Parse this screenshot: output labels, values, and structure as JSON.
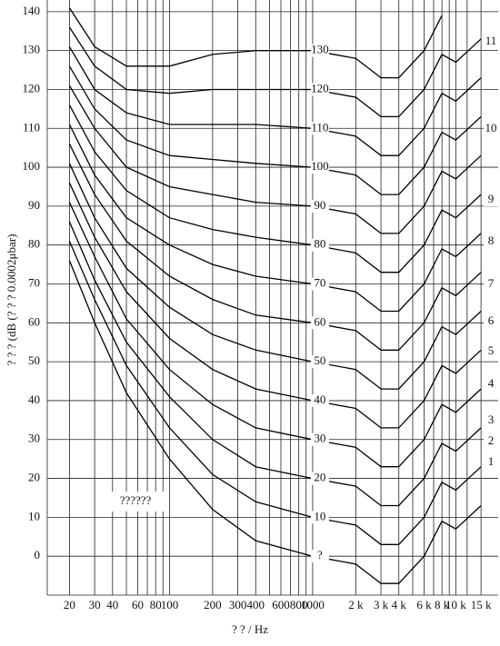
{
  "chart_data": {
    "type": "line",
    "x_label": "? ? / Hz",
    "y_label": "? ? ? (dB (? ? ? 0.0002μbar)",
    "box_label": "??????",
    "log_x": true,
    "grid": true,
    "color": "#000000",
    "xlim": [
      14,
      19770
    ],
    "ylim": [
      -10,
      143
    ],
    "xticks": [
      20,
      30,
      40,
      60,
      80,
      100,
      200,
      300,
      400,
      600,
      800,
      1000,
      {
        "value": 2000,
        "label": "2 k"
      },
      {
        "value": 3000,
        "label": "3 k"
      },
      {
        "value": 4000,
        "label": "4 k"
      },
      {
        "value": 6000,
        "label": "6 k"
      },
      {
        "value": 8000,
        "label": "8 k"
      },
      {
        "value": 10000,
        "label": "10 k"
      },
      {
        "value": 15000,
        "label": "15 k"
      }
    ],
    "x_minor_ticks": [
      50,
      70,
      90,
      500,
      700,
      900,
      5000,
      7000,
      9000,
      12000
    ],
    "yticks": [
      0,
      10,
      20,
      30,
      40,
      50,
      60,
      70,
      80,
      90,
      100,
      110,
      120,
      130,
      140
    ],
    "right_labels": [
      "11",
      "10",
      "9",
      "8",
      "7",
      "6",
      "5",
      "4",
      "3",
      "2",
      "1"
    ],
    "x": [
      20,
      30,
      50,
      100,
      200,
      400,
      1000,
      2000,
      3000,
      4000,
      6000,
      8000,
      10000,
      15000
    ],
    "series": [
      {
        "name": "130",
        "values": [
          141,
          131,
          126,
          126,
          129,
          130,
          130,
          128,
          123,
          123,
          130,
          139,
          null,
          null
        ]
      },
      {
        "name": "120",
        "values": [
          136,
          126,
          120,
          119,
          120,
          120,
          120,
          118,
          113,
          113,
          120,
          129,
          127,
          133
        ]
      },
      {
        "name": "110",
        "values": [
          131,
          120,
          114,
          111,
          111,
          111,
          110,
          108,
          103,
          103,
          110,
          119,
          117,
          123
        ]
      },
      {
        "name": "100",
        "values": [
          126,
          115,
          107,
          103,
          102,
          101,
          100,
          98,
          93,
          93,
          100,
          109,
          107,
          113
        ]
      },
      {
        "name": "90",
        "values": [
          121,
          110,
          100,
          95,
          93,
          91,
          90,
          88,
          83,
          83,
          90,
          99,
          97,
          103
        ]
      },
      {
        "name": "80",
        "values": [
          116,
          104,
          94,
          87,
          84,
          82,
          80,
          78,
          73,
          73,
          80,
          89,
          87,
          93
        ]
      },
      {
        "name": "70",
        "values": [
          111,
          98,
          87,
          80,
          75,
          72,
          70,
          68,
          63,
          63,
          70,
          79,
          77,
          83
        ]
      },
      {
        "name": "60",
        "values": [
          106,
          93,
          81,
          72,
          66,
          62,
          60,
          58,
          53,
          53,
          60,
          69,
          67,
          73
        ]
      },
      {
        "name": "50",
        "values": [
          101,
          87,
          74,
          64,
          57,
          53,
          50,
          48,
          43,
          43,
          50,
          59,
          57,
          63
        ]
      },
      {
        "name": "40",
        "values": [
          96,
          82,
          68,
          56,
          48,
          43,
          40,
          38,
          33,
          33,
          40,
          49,
          47,
          53
        ]
      },
      {
        "name": "30",
        "values": [
          91,
          77,
          61,
          48,
          39,
          33,
          30,
          28,
          23,
          23,
          30,
          39,
          37,
          43
        ]
      },
      {
        "name": "20",
        "values": [
          86,
          71,
          55,
          41,
          30,
          23,
          20,
          18,
          13,
          13,
          20,
          29,
          27,
          33
        ]
      },
      {
        "name": "10",
        "values": [
          81,
          66,
          49,
          33,
          21,
          14,
          10,
          8,
          3,
          3,
          10,
          19,
          17,
          23
        ]
      },
      {
        "name": "?",
        "values": [
          76,
          60,
          42,
          25,
          12,
          4,
          0,
          -2,
          -7,
          -7,
          0,
          9,
          7,
          13
        ]
      }
    ]
  }
}
